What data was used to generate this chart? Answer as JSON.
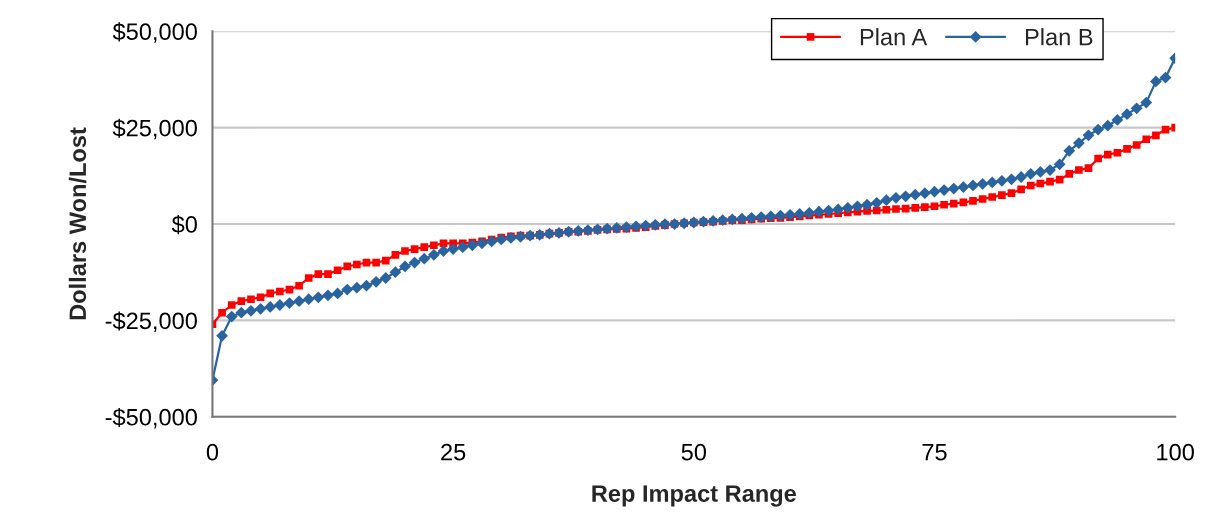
{
  "chart_data": {
    "type": "line",
    "xlabel": "Rep Impact Range",
    "ylabel": "Dollars Won/Lost",
    "x": [
      0,
      1,
      2,
      3,
      4,
      5,
      6,
      7,
      8,
      9,
      10,
      11,
      12,
      13,
      14,
      15,
      16,
      17,
      18,
      19,
      20,
      21,
      22,
      23,
      24,
      25,
      26,
      27,
      28,
      29,
      30,
      31,
      32,
      33,
      34,
      35,
      36,
      37,
      38,
      39,
      40,
      41,
      42,
      43,
      44,
      45,
      46,
      47,
      48,
      49,
      50,
      51,
      52,
      53,
      54,
      55,
      56,
      57,
      58,
      59,
      60,
      61,
      62,
      63,
      64,
      65,
      66,
      67,
      68,
      69,
      70,
      71,
      72,
      73,
      74,
      75,
      76,
      77,
      78,
      79,
      80,
      81,
      82,
      83,
      84,
      85,
      86,
      87,
      88,
      89,
      90,
      91,
      92,
      93,
      94,
      95,
      96,
      97,
      98,
      99,
      100
    ],
    "series": [
      {
        "name": "Plan A",
        "color": "#ff0000",
        "marker": "square",
        "values": [
          -26000,
          -23000,
          -21000,
          -20000,
          -19500,
          -19000,
          -18000,
          -17500,
          -17000,
          -16000,
          -14000,
          -13000,
          -13000,
          -12000,
          -11000,
          -10500,
          -10000,
          -10000,
          -9500,
          -8000,
          -7000,
          -6500,
          -6000,
          -5500,
          -5000,
          -5000,
          -5000,
          -4800,
          -4500,
          -4000,
          -3500,
          -3200,
          -3000,
          -3000,
          -2800,
          -2500,
          -2300,
          -2000,
          -2000,
          -1800,
          -1500,
          -1400,
          -1300,
          -1200,
          -1000,
          -800,
          -500,
          -300,
          0,
          200,
          400,
          500,
          600,
          800,
          1000,
          1000,
          1200,
          1400,
          1500,
          1600,
          1800,
          2000,
          2200,
          2400,
          2600,
          2800,
          3000,
          3200,
          3400,
          3500,
          3700,
          3900,
          4000,
          4200,
          4400,
          4600,
          5000,
          5300,
          5600,
          6000,
          6500,
          7000,
          7500,
          8000,
          9000,
          10000,
          10500,
          11000,
          11500,
          13000,
          14000,
          14500,
          17000,
          18000,
          18500,
          19500,
          20500,
          22000,
          23000,
          24500,
          25000
        ]
      },
      {
        "name": "Plan B",
        "color": "#2a64a0",
        "marker": "diamond",
        "values": [
          -40500,
          -29000,
          -24000,
          -23000,
          -22500,
          -22000,
          -21500,
          -21000,
          -20500,
          -20000,
          -19500,
          -19000,
          -18500,
          -18000,
          -17000,
          -16500,
          -16000,
          -15000,
          -14000,
          -12500,
          -11000,
          -10000,
          -9000,
          -8000,
          -7000,
          -6500,
          -6000,
          -5500,
          -5000,
          -4500,
          -4000,
          -3600,
          -3300,
          -3000,
          -2800,
          -2500,
          -2300,
          -2000,
          -1800,
          -1600,
          -1400,
          -1200,
          -1000,
          -800,
          -600,
          -400,
          -200,
          0,
          0,
          200,
          400,
          600,
          800,
          1000,
          1200,
          1400,
          1600,
          1800,
          2000,
          2200,
          2400,
          2600,
          2900,
          3200,
          3500,
          3800,
          4200,
          4600,
          5000,
          5500,
          6200,
          6800,
          7200,
          7600,
          8000,
          8400,
          8800,
          9200,
          9600,
          10000,
          10400,
          10800,
          11200,
          11600,
          12200,
          13000,
          13500,
          14000,
          15500,
          19000,
          21000,
          23000,
          24500,
          25500,
          27000,
          28500,
          30000,
          31500,
          37000,
          38000,
          43000
        ]
      }
    ],
    "xlim": [
      0,
      100
    ],
    "xticks": [
      0,
      25,
      50,
      75,
      100
    ],
    "ylim": [
      -50000,
      50000
    ],
    "yticks": [
      {
        "value": -50000,
        "label": "-$50,000"
      },
      {
        "value": -25000,
        "label": "-$25,000"
      },
      {
        "value": 0,
        "label": "$0"
      },
      {
        "value": 25000,
        "label": "$25,000"
      },
      {
        "value": 50000,
        "label": "$50,000"
      }
    ],
    "grid": "y",
    "legend": "top right",
    "line_style": "solid"
  }
}
